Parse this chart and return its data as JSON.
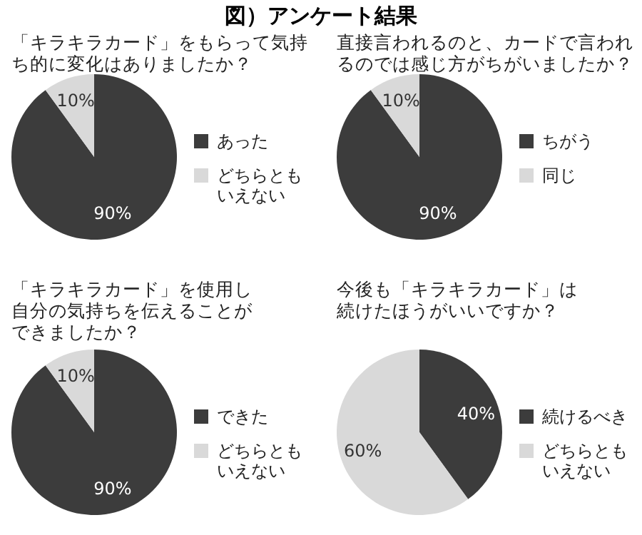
{
  "chart_data": [
    {
      "type": "pie",
      "title": "「キラキラカード」をもらって気持ち的に変化はありましたか？",
      "annotations": [
        "図）アンケート結果"
      ],
      "categories": [
        "あった",
        "どちらともいえない"
      ],
      "values": [
        90,
        10
      ],
      "value_labels": [
        "90%",
        "10%"
      ],
      "colors": [
        "#3c3c3c",
        "#d9d9d9"
      ],
      "legend": "right"
    },
    {
      "type": "pie",
      "title": "直接言われるのと、カードで言われるのでは感じ方がちがいましたか？",
      "categories": [
        "ちがう",
        "同じ"
      ],
      "values": [
        90,
        10
      ],
      "value_labels": [
        "90%",
        "10%"
      ],
      "colors": [
        "#3c3c3c",
        "#d9d9d9"
      ],
      "legend": "right"
    },
    {
      "type": "pie",
      "title": "「キラキラカード」を使用し自分の気持ちを伝えることができましたか？",
      "categories": [
        "できた",
        "どちらともいえない"
      ],
      "values": [
        90,
        10
      ],
      "value_labels": [
        "90%",
        "10%"
      ],
      "colors": [
        "#3c3c3c",
        "#d9d9d9"
      ],
      "legend": "right"
    },
    {
      "type": "pie",
      "title": "今後も「キラキラカード」は続けたほうがいいですか？",
      "categories": [
        "続けるべき",
        "どちらともいえない"
      ],
      "values": [
        40,
        60
      ],
      "value_labels": [
        "40%",
        "60%"
      ],
      "colors": [
        "#3c3c3c",
        "#d9d9d9"
      ],
      "legend": "right"
    }
  ]
}
